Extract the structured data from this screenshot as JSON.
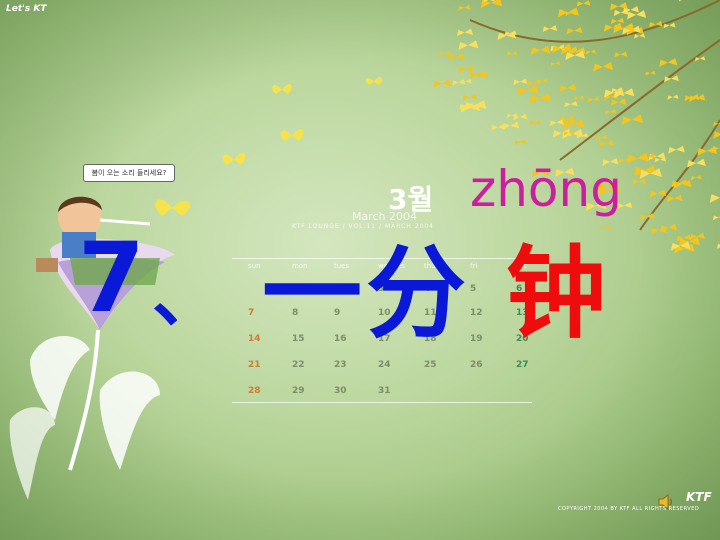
{
  "brand": "Let's KT",
  "calendar": {
    "month_title": "3월",
    "month_sub": "March 2004",
    "caption": "KTF LOUNGE / VOL.11 / MARCH 2004",
    "headers": [
      "sun",
      "mon",
      "tues",
      "wednes",
      "thurs",
      "fri",
      "sat"
    ],
    "rows": [
      [
        "",
        "1",
        "2",
        "3",
        "4",
        "5",
        "6"
      ],
      [
        "7",
        "8",
        "9",
        "10",
        "11",
        "12",
        "13"
      ],
      [
        "14",
        "15",
        "16",
        "17",
        "18",
        "19",
        "20"
      ],
      [
        "21",
        "22",
        "23",
        "24",
        "25",
        "26",
        "27"
      ],
      [
        "28",
        "29",
        "30",
        "31",
        "",
        "",
        ""
      ]
    ]
  },
  "title": {
    "number": "7",
    "separator": "、",
    "main": "一分",
    "red": "钟",
    "pinyin": "zhōng"
  },
  "bubble_text": "봄이 오는 소리 들리세요?",
  "copyright": "COPYRIGHT 2004 BY KTF ALL RIGHTS RESERVED",
  "logo": "KTF",
  "icons": {
    "speaker": "speaker-icon",
    "butterfly": "butterfly-icon"
  },
  "colors": {
    "title_blue": "#0a18d8",
    "title_red": "#ee0c0c",
    "pinyin_magenta": "#cc1f9f"
  }
}
